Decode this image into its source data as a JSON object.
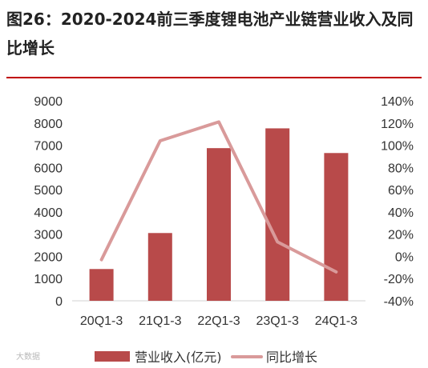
{
  "title": "图26：2020-2024前三季度锂电池产业链营业收入及同比增长",
  "watermark": "大数据",
  "chart_data": {
    "type": "bar",
    "categories": [
      "20Q1-3",
      "21Q1-3",
      "22Q1-3",
      "23Q1-3",
      "24Q1-3"
    ],
    "series": [
      {
        "name": "营业收入(亿元)",
        "type": "bar",
        "axis": "left",
        "color": "#b84a4a",
        "values": [
          1430,
          3050,
          6870,
          7760,
          6650
        ]
      },
      {
        "name": "同比增长",
        "type": "line",
        "axis": "right",
        "color": "#d99a9a",
        "values": [
          -3,
          104,
          121,
          13,
          -14
        ]
      }
    ],
    "y_left": {
      "min": 0,
      "max": 9000,
      "step": 1000,
      "ticks": [
        "0",
        "1000",
        "2000",
        "3000",
        "4000",
        "5000",
        "6000",
        "7000",
        "8000",
        "9000"
      ]
    },
    "y_right": {
      "min": -40,
      "max": 140,
      "step": 20,
      "ticks": [
        "-40%",
        "-20%",
        "0%",
        "20%",
        "40%",
        "60%",
        "80%",
        "100%",
        "120%",
        "140%"
      ]
    },
    "legend_position": "bottom",
    "grid": false
  }
}
